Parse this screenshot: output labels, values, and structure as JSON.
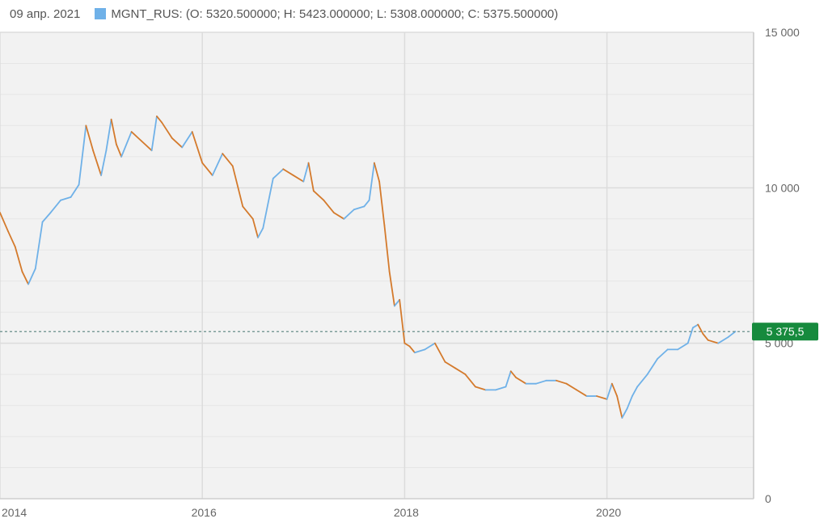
{
  "header": {
    "date": "09 апр. 2021",
    "series_label": "MGNT_RUS: (O: 5320.500000; H: 5423.000000; L: 5308.000000; C: 5375.500000)"
  },
  "last_price_label": "5 375,5",
  "colors": {
    "up": "#6fb1e8",
    "down": "#d47a2c",
    "badge": "#168a3d",
    "grid": "#dcdcdc",
    "background": "#f2f2f2",
    "dotted_line": "#6a8f8a"
  },
  "chart_data": {
    "type": "line",
    "title": "",
    "xlabel": "",
    "ylabel": "",
    "xlim": [
      2014.0,
      2021.45
    ],
    "ylim": [
      0,
      15000
    ],
    "y_ticks": [
      0,
      5000,
      10000,
      15000
    ],
    "y_tick_labels": [
      "0",
      "5 000",
      "10 000",
      "15 000"
    ],
    "x_ticks": [
      2014,
      2016,
      2018,
      2020
    ],
    "x_tick_labels": [
      "2014",
      "2016",
      "2018",
      "2020"
    ],
    "grid": true,
    "last_value": 5375.5,
    "series": [
      {
        "x": [
          2014.0,
          2014.08,
          2014.15,
          2014.22,
          2014.28,
          2014.35,
          2014.42,
          2014.5,
          2014.6,
          2014.7,
          2014.78,
          2014.85,
          2014.92,
          2015.0,
          2015.05,
          2015.1,
          2015.15,
          2015.2,
          2015.3,
          2015.4,
          2015.5,
          2015.55,
          2015.6,
          2015.7,
          2015.8,
          2015.9,
          2016.0,
          2016.1,
          2016.2,
          2016.3,
          2016.4,
          2016.5,
          2016.55,
          2016.6,
          2016.7,
          2016.8,
          2016.9,
          2017.0,
          2017.05,
          2017.1,
          2017.2,
          2017.3,
          2017.4,
          2017.5,
          2017.6,
          2017.65,
          2017.7,
          2017.75,
          2017.8,
          2017.85,
          2017.9,
          2017.95,
          2018.0,
          2018.05,
          2018.1,
          2018.2,
          2018.3,
          2018.4,
          2018.5,
          2018.6,
          2018.7,
          2018.8,
          2018.9,
          2019.0,
          2019.05,
          2019.1,
          2019.2,
          2019.3,
          2019.4,
          2019.5,
          2019.6,
          2019.7,
          2019.8,
          2019.9,
          2020.0,
          2020.05,
          2020.1,
          2020.15,
          2020.2,
          2020.25,
          2020.3,
          2020.4,
          2020.5,
          2020.6,
          2020.7,
          2020.8,
          2020.85,
          2020.9,
          2020.95,
          2021.0,
          2021.1,
          2021.2,
          2021.27
        ],
        "values": [
          9200,
          8600,
          8100,
          7300,
          6900,
          7400,
          8900,
          9200,
          9600,
          9700,
          10100,
          12000,
          11200,
          10400,
          11200,
          12200,
          11400,
          11000,
          11800,
          11500,
          11200,
          12300,
          12100,
          11600,
          11300,
          11800,
          10800,
          10400,
          11100,
          10700,
          9400,
          9000,
          8400,
          8700,
          10300,
          10600,
          10400,
          10200,
          10800,
          9900,
          9600,
          9200,
          9000,
          9300,
          9400,
          9600,
          10800,
          10200,
          8800,
          7300,
          6200,
          6400,
          5000,
          4900,
          4700,
          4800,
          5000,
          4400,
          4200,
          4000,
          3600,
          3500,
          3500,
          3600,
          4100,
          3900,
          3700,
          3700,
          3800,
          3800,
          3700,
          3500,
          3300,
          3300,
          3200,
          3700,
          3300,
          2600,
          2900,
          3300,
          3600,
          4000,
          4500,
          4800,
          4800,
          5000,
          5500,
          5600,
          5300,
          5100,
          5000,
          5200,
          5375.5
        ]
      }
    ]
  }
}
